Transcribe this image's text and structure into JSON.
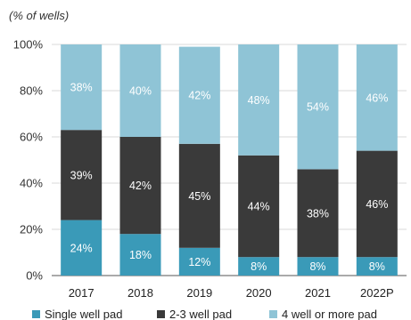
{
  "chart_data": {
    "type": "bar",
    "stacked": true,
    "unit_label": "(% of wells)",
    "categories": [
      "2017",
      "2018",
      "2019",
      "2020",
      "2021",
      "2022P"
    ],
    "series": [
      {
        "name": "Single well pad",
        "values": [
          24,
          18,
          12,
          8,
          8,
          8
        ],
        "labels": [
          "24%",
          "18%",
          "12%",
          "8%",
          "8%",
          "8%"
        ],
        "color": "#3a9ab8"
      },
      {
        "name": "2-3 well pad",
        "values": [
          39,
          42,
          45,
          44,
          38,
          46
        ],
        "labels": [
          "39%",
          "42%",
          "45%",
          "44%",
          "38%",
          "46%"
        ],
        "color": "#3a3a3a"
      },
      {
        "name": "4 well or more pad",
        "values": [
          38,
          40,
          42,
          48,
          54,
          46
        ],
        "labels": [
          "38%",
          "40%",
          "42%",
          "48%",
          "54%",
          "46%"
        ],
        "color": "#8fc4d6"
      }
    ],
    "ylim": [
      0,
      100
    ],
    "y_ticks": [
      "0%",
      "20%",
      "40%",
      "60%",
      "80%",
      "100%"
    ],
    "grid": true,
    "legend_position": "bottom"
  }
}
